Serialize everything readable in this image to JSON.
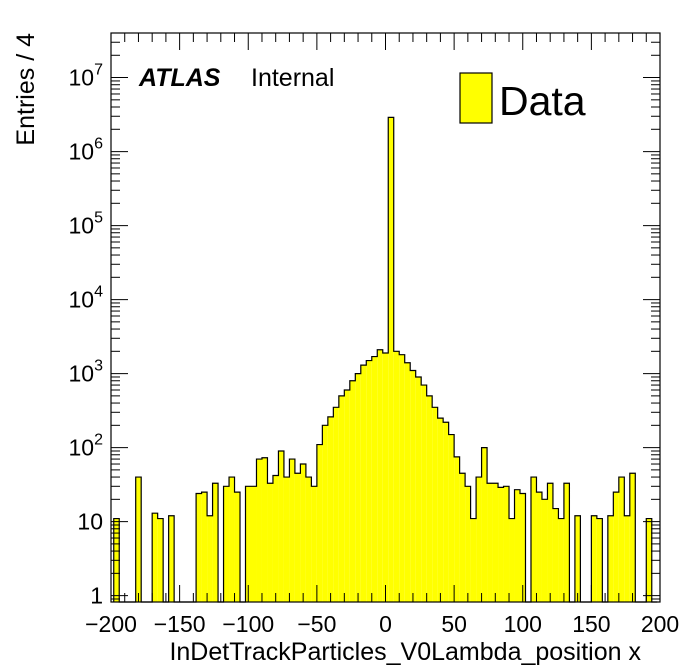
{
  "chart_data": {
    "type": "bar",
    "xlabel": "InDetTrackParticles_V0Lambda_position x",
    "ylabel": "Entries / 4",
    "xlim": [
      -200,
      200
    ],
    "ylim": [
      0.82,
      40000000
    ],
    "yscale": "log",
    "bin_width": 4,
    "x_ticks": [
      -200,
      -150,
      -100,
      -50,
      0,
      50,
      100,
      150,
      200
    ],
    "x_tick_labels": [
      "−200",
      "−150",
      "−100",
      "−50",
      "0",
      "50",
      "100",
      "150",
      "200"
    ],
    "y_ticks": [
      1,
      10,
      100,
      1000,
      10000,
      100000,
      1000000,
      10000000
    ],
    "y_tick_labels": [
      {
        "base": "1",
        "exp": ""
      },
      {
        "base": "10",
        "exp": ""
      },
      {
        "base": "10",
        "exp": "2"
      },
      {
        "base": "10",
        "exp": "3"
      },
      {
        "base": "10",
        "exp": "4"
      },
      {
        "base": "10",
        "exp": "5"
      },
      {
        "base": "10",
        "exp": "6"
      },
      {
        "base": "10",
        "exp": "7"
      }
    ],
    "annotation": {
      "atlas": "ATLAS",
      "status": "Internal"
    },
    "legend": {
      "label": "Data",
      "position": "top-right"
    },
    "colors": {
      "fill": "#ffff00",
      "line": "#000000"
    },
    "bins": [
      {
        "x": -196,
        "y": 11
      },
      {
        "x": -192,
        "y": 0
      },
      {
        "x": -188,
        "y": 0
      },
      {
        "x": -184,
        "y": 0
      },
      {
        "x": -180,
        "y": 40
      },
      {
        "x": -176,
        "y": 0
      },
      {
        "x": -172,
        "y": 0
      },
      {
        "x": -168,
        "y": 13
      },
      {
        "x": -164,
        "y": 11
      },
      {
        "x": -160,
        "y": 0
      },
      {
        "x": -156,
        "y": 12
      },
      {
        "x": -152,
        "y": 0
      },
      {
        "x": -148,
        "y": 0
      },
      {
        "x": -144,
        "y": 0
      },
      {
        "x": -140,
        "y": 0
      },
      {
        "x": -136,
        "y": 24
      },
      {
        "x": -132,
        "y": 25
      },
      {
        "x": -128,
        "y": 12
      },
      {
        "x": -124,
        "y": 33
      },
      {
        "x": -120,
        "y": 0
      },
      {
        "x": -116,
        "y": 30
      },
      {
        "x": -112,
        "y": 40
      },
      {
        "x": -108,
        "y": 25
      },
      {
        "x": -104,
        "y": 0
      },
      {
        "x": -100,
        "y": 30
      },
      {
        "x": -96,
        "y": 30
      },
      {
        "x": -92,
        "y": 70
      },
      {
        "x": -88,
        "y": 73
      },
      {
        "x": -84,
        "y": 33
      },
      {
        "x": -80,
        "y": 42
      },
      {
        "x": -76,
        "y": 90
      },
      {
        "x": -72,
        "y": 40
      },
      {
        "x": -68,
        "y": 70
      },
      {
        "x": -64,
        "y": 45
      },
      {
        "x": -60,
        "y": 60
      },
      {
        "x": -56,
        "y": 40
      },
      {
        "x": -52,
        "y": 30
      },
      {
        "x": -48,
        "y": 110
      },
      {
        "x": -44,
        "y": 200
      },
      {
        "x": -40,
        "y": 260
      },
      {
        "x": -36,
        "y": 350
      },
      {
        "x": -32,
        "y": 500
      },
      {
        "x": -28,
        "y": 600
      },
      {
        "x": -24,
        "y": 800
      },
      {
        "x": -20,
        "y": 1000
      },
      {
        "x": -16,
        "y": 1300
      },
      {
        "x": -12,
        "y": 1500
      },
      {
        "x": -8,
        "y": 1700
      },
      {
        "x": -4,
        "y": 2100
      },
      {
        "x": 0,
        "y": 1900
      },
      {
        "x": 4,
        "y": 2900000
      },
      {
        "x": 8,
        "y": 2000
      },
      {
        "x": 12,
        "y": 1800
      },
      {
        "x": 16,
        "y": 1400
      },
      {
        "x": 20,
        "y": 1100
      },
      {
        "x": 24,
        "y": 900
      },
      {
        "x": 28,
        "y": 700
      },
      {
        "x": 32,
        "y": 500
      },
      {
        "x": 36,
        "y": 350
      },
      {
        "x": 40,
        "y": 250
      },
      {
        "x": 44,
        "y": 220
      },
      {
        "x": 48,
        "y": 150
      },
      {
        "x": 52,
        "y": 75
      },
      {
        "x": 56,
        "y": 45
      },
      {
        "x": 60,
        "y": 30
      },
      {
        "x": 64,
        "y": 11
      },
      {
        "x": 68,
        "y": 40
      },
      {
        "x": 72,
        "y": 100
      },
      {
        "x": 76,
        "y": 33
      },
      {
        "x": 80,
        "y": 33
      },
      {
        "x": 84,
        "y": 29
      },
      {
        "x": 88,
        "y": 30
      },
      {
        "x": 92,
        "y": 11
      },
      {
        "x": 96,
        "y": 27
      },
      {
        "x": 100,
        "y": 24
      },
      {
        "x": 104,
        "y": 0
      },
      {
        "x": 108,
        "y": 40
      },
      {
        "x": 112,
        "y": 25
      },
      {
        "x": 116,
        "y": 20
      },
      {
        "x": 120,
        "y": 33
      },
      {
        "x": 124,
        "y": 15
      },
      {
        "x": 128,
        "y": 11
      },
      {
        "x": 132,
        "y": 33
      },
      {
        "x": 136,
        "y": 0
      },
      {
        "x": 140,
        "y": 12
      },
      {
        "x": 144,
        "y": 0
      },
      {
        "x": 148,
        "y": 0
      },
      {
        "x": 152,
        "y": 12
      },
      {
        "x": 156,
        "y": 11
      },
      {
        "x": 160,
        "y": 0
      },
      {
        "x": 164,
        "y": 12
      },
      {
        "x": 168,
        "y": 25
      },
      {
        "x": 172,
        "y": 40
      },
      {
        "x": 176,
        "y": 12
      },
      {
        "x": 180,
        "y": 45
      },
      {
        "x": 184,
        "y": 0
      },
      {
        "x": 188,
        "y": 0
      },
      {
        "x": 192,
        "y": 11
      },
      {
        "x": 196,
        "y": 0
      }
    ]
  }
}
